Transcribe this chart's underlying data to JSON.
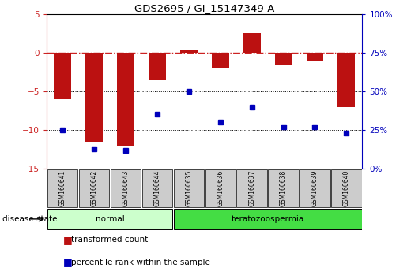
{
  "title": "GDS2695 / GI_15147349-A",
  "samples": [
    "GSM160641",
    "GSM160642",
    "GSM160643",
    "GSM160644",
    "GSM160635",
    "GSM160636",
    "GSM160637",
    "GSM160638",
    "GSM160639",
    "GSM160640"
  ],
  "transformed_count": [
    -6.0,
    -11.5,
    -12.0,
    -3.5,
    0.3,
    -2.0,
    2.5,
    -1.5,
    -1.0,
    -7.0
  ],
  "percentile_rank_raw": [
    25,
    13,
    12,
    35,
    50,
    30,
    40,
    27,
    27,
    23
  ],
  "groups": [
    {
      "label": "normal",
      "start": 0,
      "end": 4,
      "color": "#ccffcc"
    },
    {
      "label": "teratozoospermia",
      "start": 4,
      "end": 10,
      "color": "#44dd44"
    }
  ],
  "left_ylim": [
    -15,
    5
  ],
  "left_yticks": [
    5,
    0,
    -5,
    -10,
    -15
  ],
  "right_ylim": [
    0,
    100
  ],
  "right_yticks": [
    100,
    75,
    50,
    25,
    0
  ],
  "bar_color": "#bb1111",
  "dot_color": "#0000bb",
  "hline_color": "#cc2222",
  "dotline_color": "#000000",
  "label_box_color": "#cccccc",
  "background_color": "#ffffff"
}
